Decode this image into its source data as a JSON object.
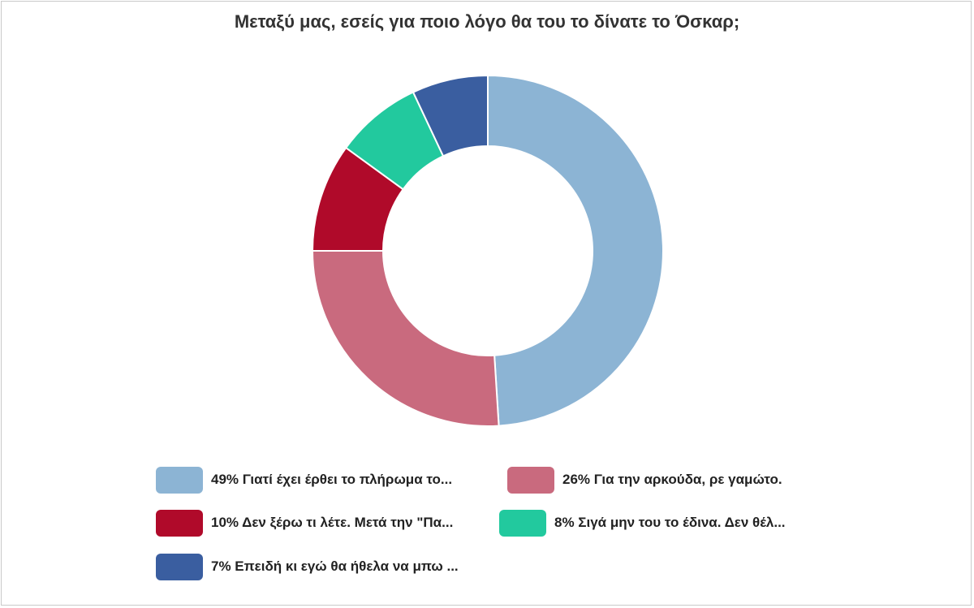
{
  "chart_data": {
    "type": "pie",
    "donut": true,
    "title": "Μεταξύ μας, εσείς για ποιο λόγο θα του το δίνατε το Όσκαρ;",
    "legend_position": "bottom",
    "slices": [
      {
        "value": 49,
        "label": "49% Γιατί έχει έρθει το πλήρωμα το...",
        "color": "#8cb4d4"
      },
      {
        "value": 26,
        "label": "26% Για την αρκούδα, ρε γαμώτο.",
        "color": "#c96a7e"
      },
      {
        "value": 10,
        "label": "10% Δεν ξέρω τι λέτε. Μετά την \"Πα...",
        "color": "#b00a2a"
      },
      {
        "value": 8,
        "label": "8% Σιγά μην του το έδινα. Δεν θέλ...",
        "color": "#22c99e"
      },
      {
        "value": 7,
        "label": "7% Επειδή κι εγώ θα ήθελα να μπω ...",
        "color": "#3a5ea0"
      }
    ]
  }
}
